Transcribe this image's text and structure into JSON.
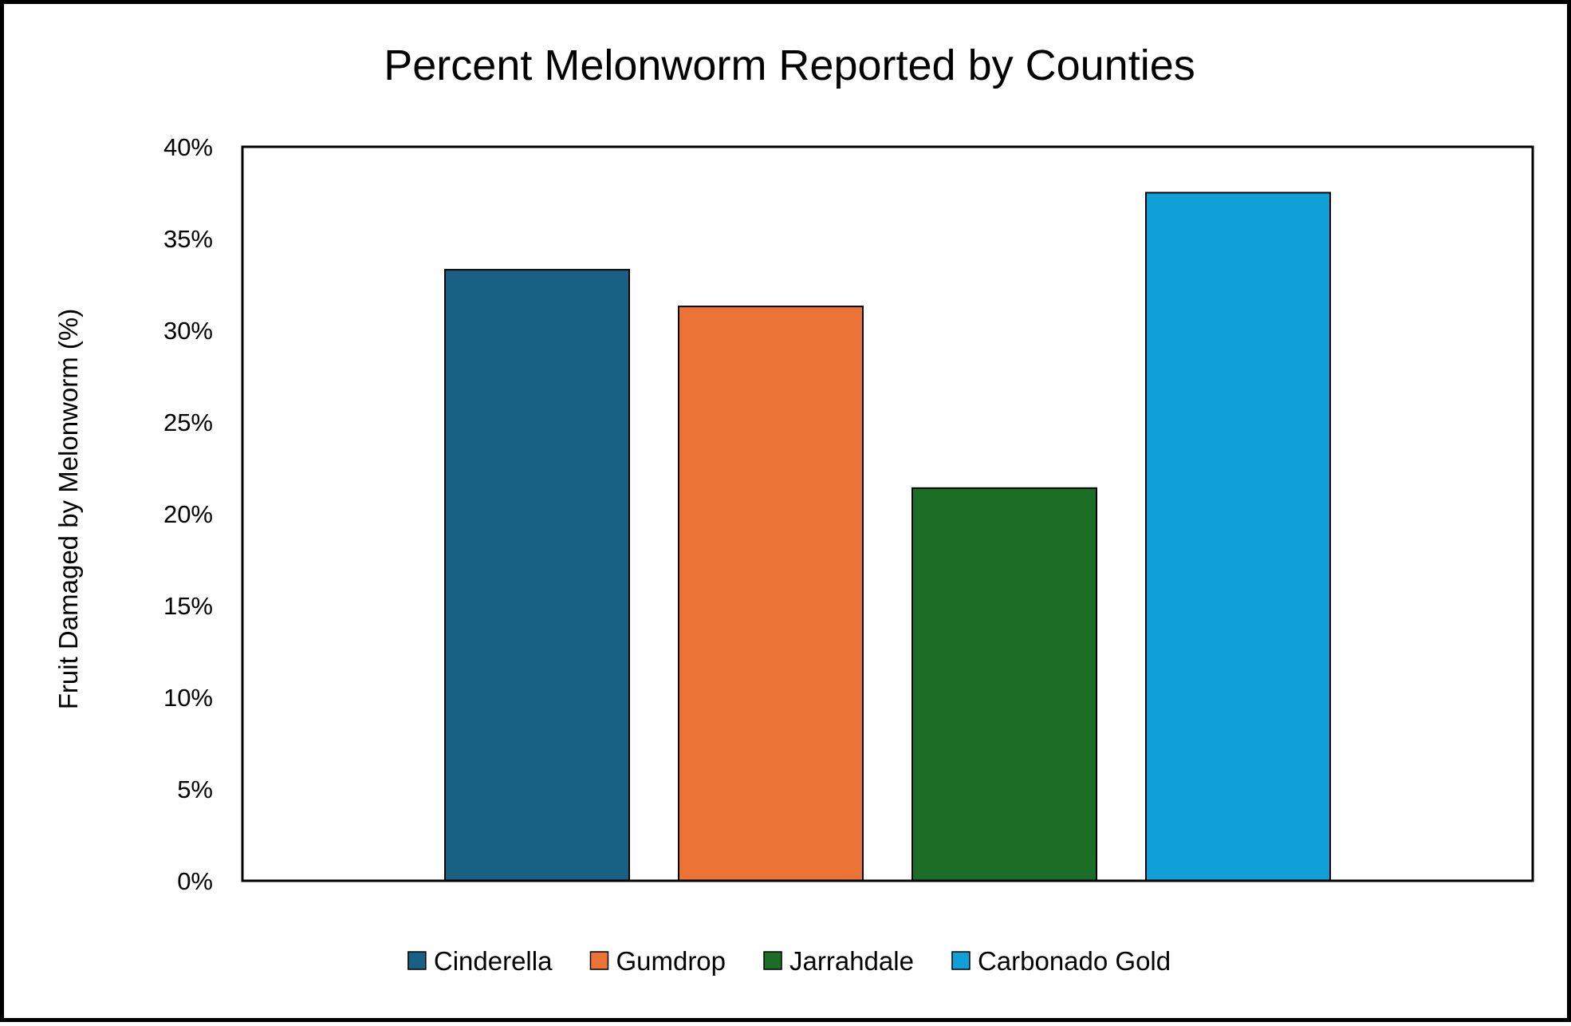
{
  "chart_data": {
    "type": "bar",
    "title": "Percent Melonworm Reported by Counties",
    "ylabel": "Fruit Damaged by Melonworm (%)",
    "xlabel": "",
    "ylim": [
      0,
      40
    ],
    "yticks": [
      "0%",
      "5%",
      "10%",
      "15%",
      "20%",
      "25%",
      "30%",
      "35%",
      "40%"
    ],
    "grid": false,
    "legend_position": "bottom",
    "categories": [
      "Cinderella",
      "Gumdrop",
      "Jarrahdale",
      "Carbonado Gold"
    ],
    "values": [
      33.3,
      31.3,
      21.4,
      37.5
    ],
    "colors": [
      "#186184",
      "#EB7335",
      "#1C6D25",
      "#109FD6"
    ]
  }
}
